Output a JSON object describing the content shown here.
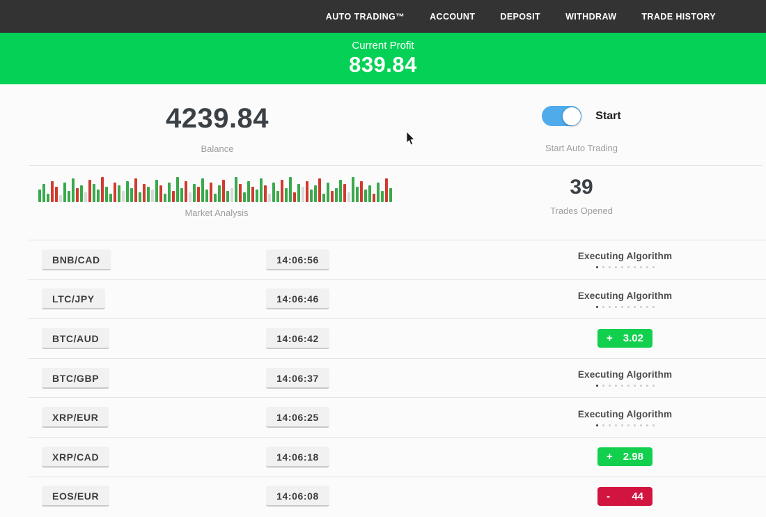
{
  "navbar": {
    "items": [
      {
        "name": "auto-trading",
        "label": "AUTO TRADING™"
      },
      {
        "name": "account",
        "label": "ACCOUNT"
      },
      {
        "name": "deposit",
        "label": "DEPOSIT"
      },
      {
        "name": "withdraw",
        "label": "WITHDRAW"
      },
      {
        "name": "trade-history",
        "label": "TRADE HISTORY"
      }
    ]
  },
  "profit_banner": {
    "label": "Current Profit",
    "value": "839.84"
  },
  "stats": {
    "balance": {
      "value": "4239.84",
      "label": "Balance"
    },
    "auto_trading": {
      "toggle_label": "Start",
      "caption": "Start Auto Trading",
      "enabled": true
    },
    "market_analysis": {
      "label": "Market Analysis"
    },
    "trades_opened": {
      "value": "39",
      "label": "Trades Opened"
    }
  },
  "market_bars": [
    [
      18,
      "g"
    ],
    [
      26,
      "g"
    ],
    [
      12,
      "g"
    ],
    [
      30,
      "r"
    ],
    [
      22,
      "r"
    ],
    [
      10,
      "p"
    ],
    [
      28,
      "g"
    ],
    [
      16,
      "g"
    ],
    [
      34,
      "g"
    ],
    [
      20,
      "r"
    ],
    [
      24,
      "g"
    ],
    [
      14,
      "p"
    ],
    [
      32,
      "r"
    ],
    [
      26,
      "g"
    ],
    [
      18,
      "g"
    ],
    [
      36,
      "r"
    ],
    [
      22,
      "g"
    ],
    [
      12,
      "g"
    ],
    [
      28,
      "r"
    ],
    [
      24,
      "g"
    ],
    [
      16,
      "p"
    ],
    [
      30,
      "g"
    ],
    [
      20,
      "g"
    ],
    [
      34,
      "r"
    ],
    [
      14,
      "g"
    ],
    [
      26,
      "r"
    ],
    [
      22,
      "g"
    ],
    [
      18,
      "p"
    ],
    [
      32,
      "g"
    ],
    [
      24,
      "r"
    ],
    [
      12,
      "g"
    ],
    [
      28,
      "g"
    ],
    [
      16,
      "r"
    ],
    [
      36,
      "g"
    ],
    [
      20,
      "g"
    ],
    [
      30,
      "r"
    ],
    [
      14,
      "p"
    ],
    [
      26,
      "g"
    ],
    [
      22,
      "r"
    ],
    [
      34,
      "g"
    ],
    [
      18,
      "g"
    ],
    [
      28,
      "r"
    ],
    [
      12,
      "g"
    ],
    [
      24,
      "g"
    ],
    [
      32,
      "r"
    ],
    [
      16,
      "g"
    ],
    [
      20,
      "p"
    ],
    [
      36,
      "g"
    ],
    [
      26,
      "r"
    ],
    [
      14,
      "g"
    ],
    [
      30,
      "g"
    ],
    [
      22,
      "r"
    ],
    [
      18,
      "g"
    ],
    [
      34,
      "g"
    ],
    [
      24,
      "r"
    ],
    [
      12,
      "p"
    ],
    [
      28,
      "g"
    ],
    [
      16,
      "g"
    ],
    [
      32,
      "r"
    ],
    [
      20,
      "g"
    ],
    [
      36,
      "g"
    ],
    [
      14,
      "r"
    ],
    [
      26,
      "g"
    ],
    [
      22,
      "p"
    ],
    [
      30,
      "r"
    ],
    [
      18,
      "g"
    ],
    [
      24,
      "g"
    ],
    [
      34,
      "r"
    ],
    [
      12,
      "g"
    ],
    [
      28,
      "g"
    ],
    [
      16,
      "r"
    ],
    [
      20,
      "g"
    ],
    [
      32,
      "g"
    ],
    [
      26,
      "r"
    ],
    [
      14,
      "p"
    ],
    [
      36,
      "g"
    ],
    [
      22,
      "g"
    ],
    [
      30,
      "r"
    ],
    [
      18,
      "g"
    ],
    [
      24,
      "g"
    ],
    [
      12,
      "r"
    ],
    [
      28,
      "g"
    ],
    [
      16,
      "g"
    ],
    [
      34,
      "r"
    ],
    [
      20,
      "g"
    ]
  ],
  "trade_table": {
    "executing_label": "Executing Algorithm",
    "executing_dots": 10,
    "trades": [
      {
        "pair": "BNB/CAD",
        "time": "14:06:56",
        "status": "executing"
      },
      {
        "pair": "LTC/JPY",
        "time": "14:06:46",
        "status": "executing"
      },
      {
        "pair": "BTC/AUD",
        "time": "14:06:42",
        "status": "win",
        "sign": "+",
        "amount": "3.02"
      },
      {
        "pair": "BTC/GBP",
        "time": "14:06:37",
        "status": "executing"
      },
      {
        "pair": "XRP/EUR",
        "time": "14:06:25",
        "status": "executing"
      },
      {
        "pair": "XRP/CAD",
        "time": "14:06:18",
        "status": "win",
        "sign": "+",
        "amount": "2.98"
      },
      {
        "pair": "EOS/EUR",
        "time": "14:06:08",
        "status": "loss",
        "sign": "-",
        "amount": "44"
      }
    ]
  },
  "colors": {
    "navbar_bg": "#333333",
    "banner_green": "#05d156",
    "badge_green": "#12d04e",
    "badge_red": "#d11540",
    "toggle_blue": "#4fabea",
    "bar_green": "#3aa94c",
    "bar_red": "#cf3b30",
    "bar_pale": "#d9d9d9"
  }
}
